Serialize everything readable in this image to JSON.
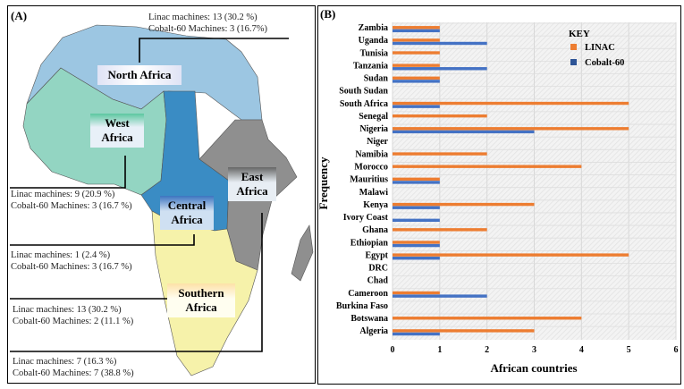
{
  "panel_a": {
    "label": "(A)",
    "regions": [
      {
        "name": "North Africa",
        "linac": "Linac machines: 13 (30.2 %)",
        "cobalt": "Cobalt-60 Machines: 3 (16.7%)"
      },
      {
        "name": "West Africa",
        "linac": "Linac machines: 9 (20.9 %)",
        "cobalt": "Cobalt-60 Machines: 3 (16.7 %)"
      },
      {
        "name": "Central Africa",
        "linac": "Linac machines: 1 (2.4 %)",
        "cobalt": "Cobalt-60 Machines: 3 (16.7 %)"
      },
      {
        "name": "Southern Africa",
        "linac": "Linac machines: 13 (30.2 %)",
        "cobalt": "Cobalt-60 Machines: 2 (11.1 %)"
      },
      {
        "name": "East Africa",
        "linac": "Linac machines: 7 (16.3 %)",
        "cobalt": "Cobalt-60 Machines: 7 (38.8 %)"
      }
    ],
    "colors": {
      "north": "#9cc6e2",
      "west": "#93d5c2",
      "central": "#3a8cc4",
      "east": "#8f8f8f",
      "southern": "#f6f2aa"
    }
  },
  "panel_b": {
    "label": "(B)"
  },
  "chart_data": {
    "type": "bar",
    "orientation": "horizontal",
    "xlabel": "African countries",
    "ylabel": "Frequency",
    "legend_title": "KEY",
    "legend_position": "top-right",
    "xlim": [
      0,
      6
    ],
    "xticks": [
      "0",
      "1",
      "2",
      "3",
      "4",
      "5",
      "6"
    ],
    "grid": true,
    "categories": [
      "Zambia",
      "Uganda",
      "Tunisia",
      "Tanzania",
      "Sudan",
      "South Sudan",
      "South Africa",
      "Senegal",
      "Nigeria",
      "Niger",
      "Namibia",
      "Morocco",
      "Mauritius",
      "Malawi",
      "Kenya",
      "Ivory Coast",
      "Ghana",
      "Ethiopian",
      "Egypt",
      "DRC",
      "Chad",
      "Cameroon",
      "Burkina Faso",
      "Botswana",
      "Algeria"
    ],
    "series": [
      {
        "name": "LINAC",
        "color": "#ed7d31",
        "values": [
          1,
          1,
          1,
          1,
          1,
          0,
          5,
          2,
          5,
          0,
          2,
          4,
          1,
          0,
          3,
          0,
          2,
          1,
          5,
          0,
          0,
          1,
          0,
          4,
          3
        ]
      },
      {
        "name": "Cobalt-60",
        "color": "#4472c4",
        "values": [
          1,
          2,
          0,
          2,
          1,
          0,
          1,
          0,
          3,
          0,
          0,
          0,
          1,
          0,
          1,
          1,
          0,
          1,
          1,
          0,
          0,
          2,
          0,
          0,
          1
        ]
      }
    ]
  }
}
